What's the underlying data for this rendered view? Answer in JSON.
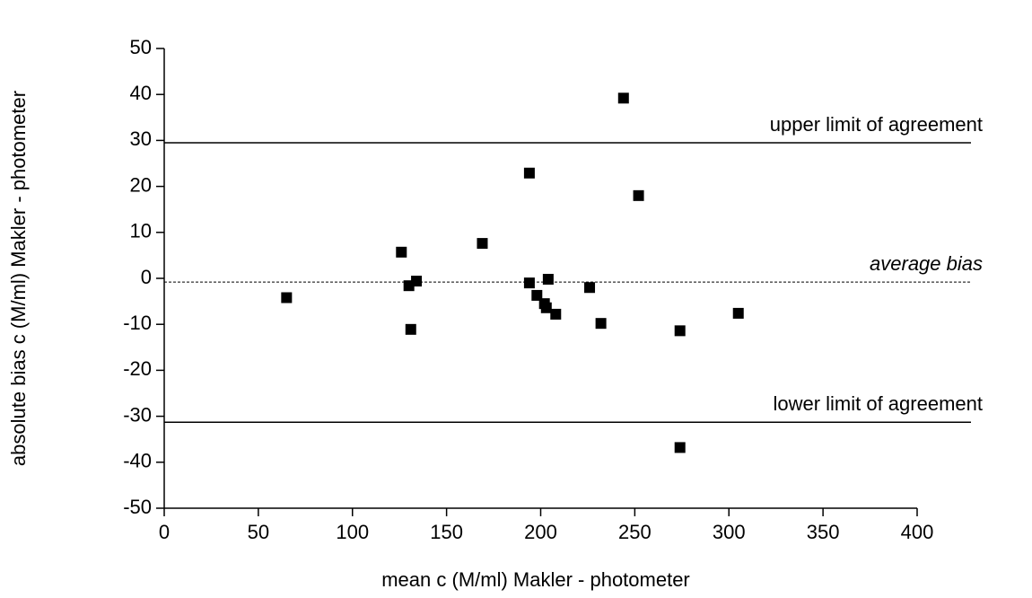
{
  "chart_data": {
    "type": "scatter",
    "xlabel": "mean c (M/ml) Makler - photometer",
    "ylabel": "absolute bias c (M/ml) Makler - photometer",
    "xlim": [
      0,
      400
    ],
    "ylim": [
      -50,
      50
    ],
    "xticks": [
      0,
      50,
      100,
      150,
      200,
      250,
      300,
      350,
      400
    ],
    "yticks": [
      -50,
      -40,
      -30,
      -20,
      -10,
      0,
      10,
      20,
      30,
      40,
      50
    ],
    "color": "#000000",
    "x": [
      65,
      126,
      130,
      134,
      131,
      169,
      194,
      194,
      198,
      202,
      203,
      204,
      208,
      226,
      244,
      232,
      252,
      274,
      274,
      305
    ],
    "values": [
      -4.2,
      5.7,
      -1.6,
      -0.6,
      -11.1,
      7.6,
      22.9,
      -1,
      -3.7,
      -5.5,
      -6.4,
      -0.2,
      -7.8,
      -2,
      39.2,
      -9.8,
      18,
      -11.4,
      -36.8,
      -7.6
    ],
    "reference_lines": [
      {
        "label": "upper limit of agreement",
        "value": 29.5,
        "style": "solid"
      },
      {
        "label": "average bias",
        "value": -0.8,
        "style": "dashed"
      },
      {
        "label": "lower limit of agreement",
        "value": -31.3,
        "style": "solid"
      }
    ]
  }
}
